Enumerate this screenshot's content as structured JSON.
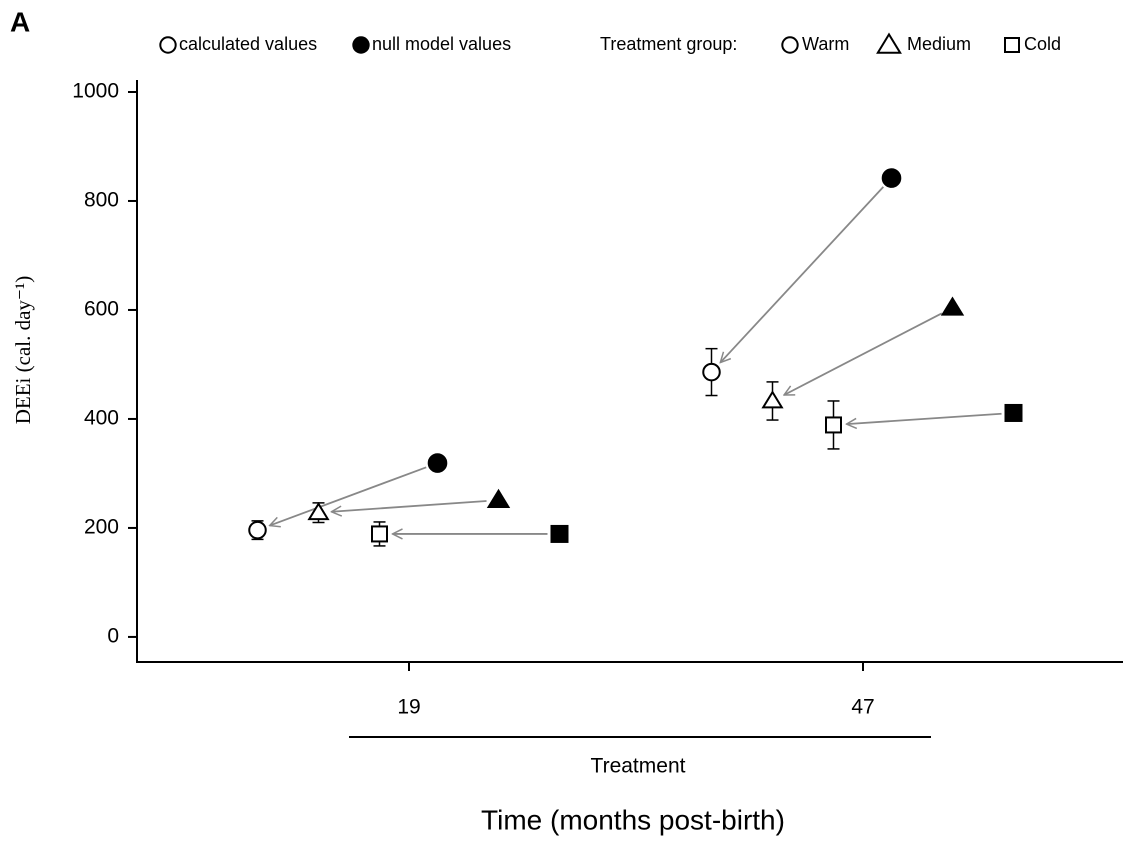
{
  "chart_data": {
    "type": "dodged-scatter",
    "panel_label": "A",
    "value_types": [
      {
        "name": "calculated values",
        "filled": false
      },
      {
        "name": "null model values",
        "filled": true
      }
    ],
    "treatment_legend_title": "Treatment group:",
    "categories": [
      "19",
      "47"
    ],
    "x_group_label": "Treatment",
    "xlabel": "Time (months post-birth)",
    "ylabel": "DEEi (cal. day⁻¹)",
    "ylim": [
      -46,
      1022
    ],
    "yticks": [
      0,
      200,
      400,
      600,
      800,
      1000
    ],
    "arrow_color": "#888888",
    "series": [
      {
        "name": "Warm",
        "marker": "circle",
        "calculated": [
          196,
          486
        ],
        "calculated_error": [
          17,
          43
        ],
        "null": [
          319,
          842
        ]
      },
      {
        "name": "Medium",
        "marker": "triangle",
        "calculated": [
          228,
          433
        ],
        "calculated_error": [
          18,
          35
        ],
        "null": [
          251,
          604
        ]
      },
      {
        "name": "Cold",
        "marker": "square",
        "calculated": [
          189,
          389
        ],
        "calculated_error": [
          22,
          44
        ],
        "null": [
          189,
          411
        ]
      }
    ]
  }
}
